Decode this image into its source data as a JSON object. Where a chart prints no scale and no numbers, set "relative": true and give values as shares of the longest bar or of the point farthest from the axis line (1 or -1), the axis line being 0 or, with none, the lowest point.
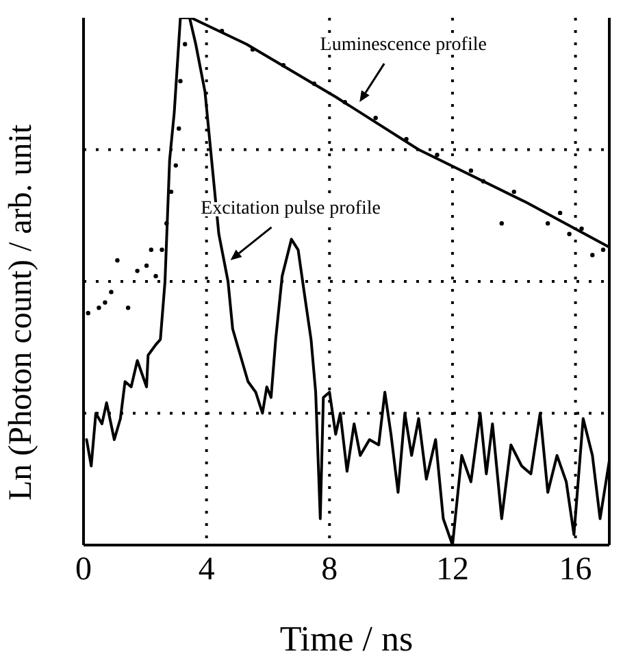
{
  "chart_data": {
    "type": "line",
    "xlabel": "Time / ns",
    "ylabel": "Ln (Photon count) / arb. unit",
    "relative": true,
    "xlim": [
      0,
      17.1
    ],
    "xticks": [
      0,
      4,
      8,
      12,
      16
    ],
    "grid": true,
    "annotations": [
      {
        "text": "Luminescence profile",
        "x": 8.8,
        "y": 0.83
      },
      {
        "text": "Excitation pulse profile",
        "x": 4.6,
        "y": 0.53
      }
    ],
    "series": [
      {
        "color": "#000000",
        "marker": "none",
        "x": [
          0.1,
          0.25,
          0.4,
          0.6,
          0.75,
          1.0,
          1.2,
          1.35,
          1.55,
          1.75,
          2.05,
          2.1,
          2.35,
          2.5,
          2.65,
          2.8,
          2.95,
          3.15,
          3.45,
          3.65,
          3.95,
          4.1,
          4.4,
          4.7,
          4.85,
          5.1,
          5.35,
          5.6,
          5.82,
          5.96,
          6.1,
          6.25,
          6.46,
          6.76,
          6.98,
          7.2,
          7.4,
          7.55,
          7.7,
          7.8,
          8.0,
          8.2,
          8.35,
          8.57,
          8.8,
          9.0,
          9.3,
          9.6,
          9.8,
          10.0,
          10.23,
          10.45,
          10.67,
          10.9,
          11.15,
          11.45,
          11.7,
          12.0,
          12.3,
          12.6,
          12.9,
          13.1,
          13.3,
          13.6,
          13.9,
          14.25,
          14.55,
          14.85,
          15.1,
          15.4,
          15.7,
          15.95,
          16.25,
          16.55,
          16.8,
          17.1
        ],
        "values": [
          0.2,
          0.15,
          0.25,
          0.23,
          0.27,
          0.2,
          0.24,
          0.31,
          0.3,
          0.35,
          0.3,
          0.36,
          0.38,
          0.39,
          0.5,
          0.73,
          0.82,
          1.0,
          1.0,
          0.95,
          0.86,
          0.77,
          0.59,
          0.5,
          0.41,
          0.36,
          0.31,
          0.29,
          0.25,
          0.3,
          0.28,
          0.39,
          0.51,
          0.58,
          0.56,
          0.47,
          0.39,
          0.29,
          0.05,
          0.28,
          0.29,
          0.21,
          0.25,
          0.14,
          0.23,
          0.17,
          0.2,
          0.19,
          0.29,
          0.21,
          0.1,
          0.25,
          0.17,
          0.24,
          0.125,
          0.2,
          0.05,
          0.0,
          0.17,
          0.12,
          0.25,
          0.135,
          0.23,
          0.05,
          0.19,
          0.15,
          0.135,
          0.25,
          0.1,
          0.17,
          0.12,
          0.02,
          0.24,
          0.17,
          0.05,
          0.16
        ]
      },
      {
        "type": "scatter",
        "color": "#000000",
        "marker": "circle",
        "x": [
          0.15,
          0.5,
          0.7,
          0.9,
          1.1,
          1.45,
          1.75,
          2.05,
          2.2,
          2.35,
          2.55,
          2.7,
          2.85,
          3.0,
          3.1,
          3.15,
          3.3,
          4.5,
          5.5,
          6.5,
          7.5,
          8.5,
          9.5,
          10.5,
          11.5,
          12.6,
          13.0,
          13.6,
          14.0,
          15.1,
          15.5,
          15.8,
          16.2,
          16.55,
          16.9
        ],
        "values": [
          0.44,
          0.45,
          0.46,
          0.48,
          0.54,
          0.45,
          0.52,
          0.53,
          0.56,
          0.51,
          0.56,
          0.61,
          0.67,
          0.72,
          0.79,
          0.88,
          0.95,
          0.975,
          0.94,
          0.91,
          0.875,
          0.84,
          0.81,
          0.77,
          0.74,
          0.71,
          0.69,
          0.61,
          0.67,
          0.61,
          0.63,
          0.59,
          0.6,
          0.55,
          0.56
        ]
      },
      {
        "type": "line",
        "color": "#000000",
        "marker": "none",
        "x": [
          3.5,
          5.3,
          8.2,
          10.9,
          14.4,
          17.1
        ],
        "values": [
          1.0,
          0.95,
          0.85,
          0.75,
          0.65,
          0.565
        ]
      }
    ]
  }
}
